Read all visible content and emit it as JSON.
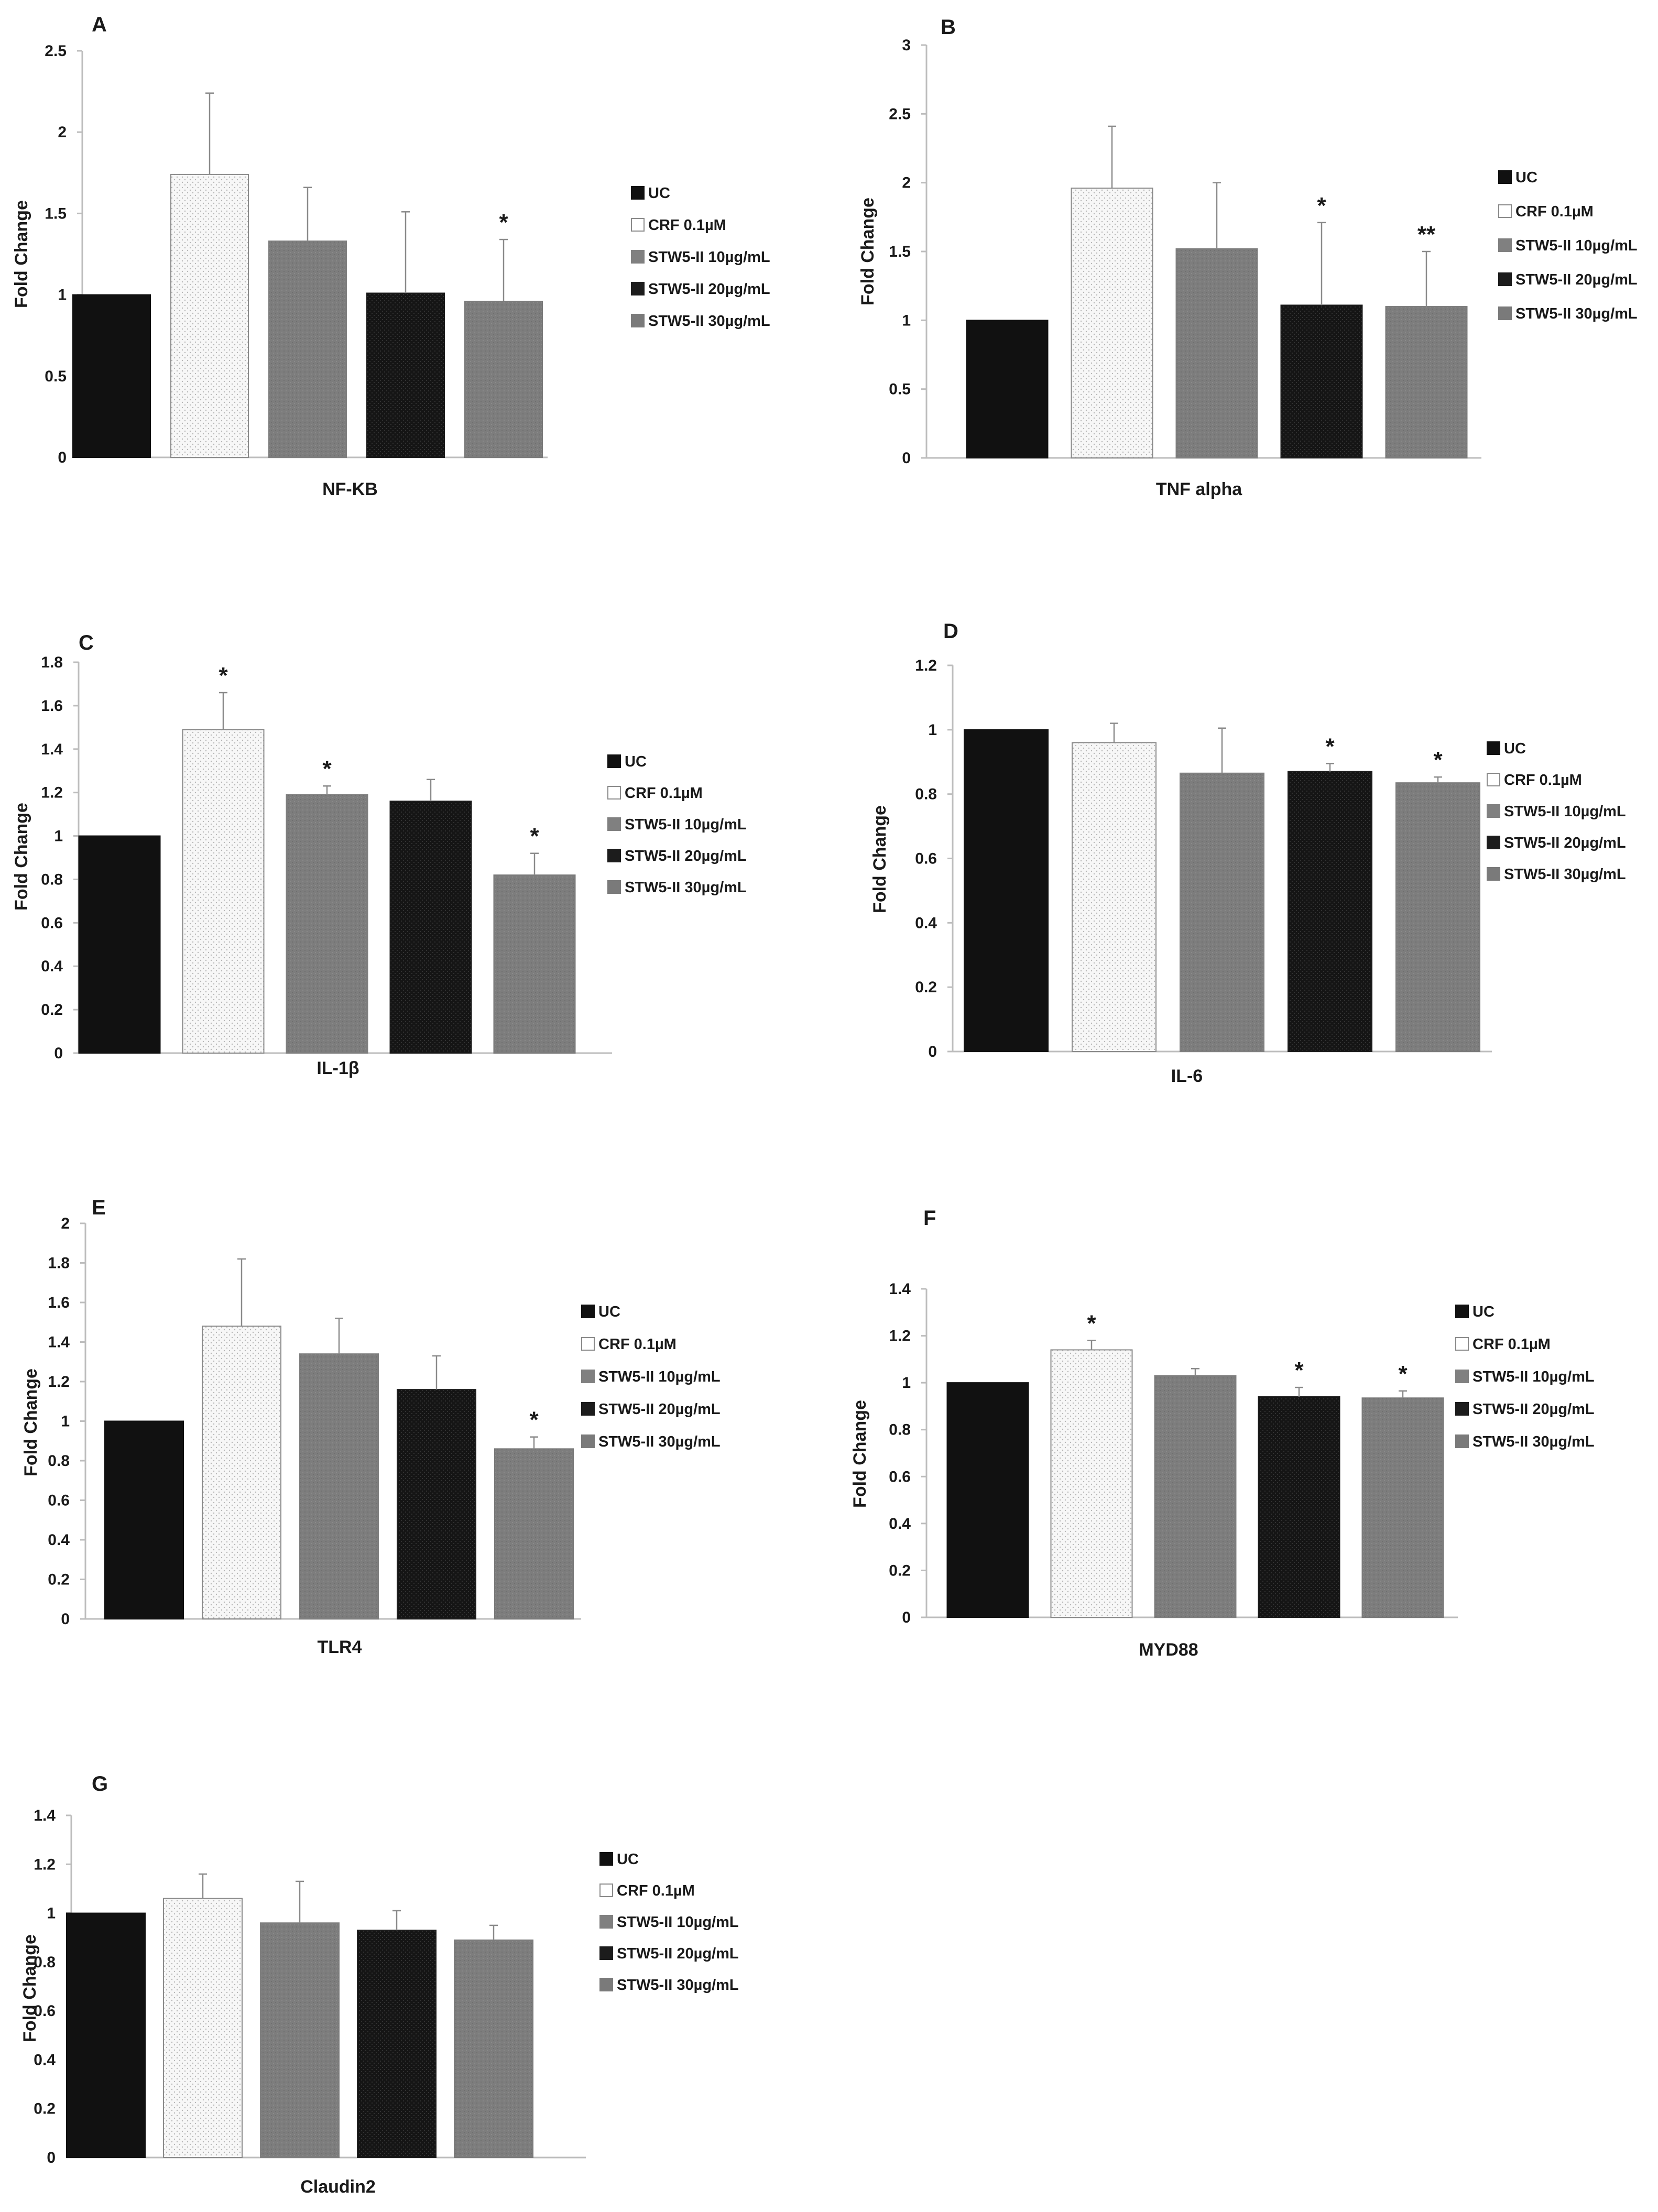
{
  "colors": {
    "uc": "#111111",
    "crf_fill": "#f7f7f7",
    "crf_stroke": "#8a8a8a",
    "stw10": "#808080",
    "stw20": "#1c1c1c",
    "stw30": "#7a7a7a",
    "axis": "#bdbdbd",
    "error": "#8a8a8a"
  },
  "legend_labels": [
    "UC",
    "CRF 0.1µM",
    "STW5-II 10µg/mL",
    "STW5-II 20µg/mL",
    "STW5-II 30µg/mL"
  ],
  "chart_data": [
    {
      "type": "bar",
      "panel": "A",
      "xlabel": "NF-KB",
      "ylabel": "Fold Change",
      "ylim": [
        0,
        2.5
      ],
      "yticks": [
        "0",
        "0.5",
        "1",
        "1.5",
        "2",
        "2.5"
      ],
      "series": [
        {
          "name": "UC",
          "value": 1.0,
          "error": 0,
          "sig": ""
        },
        {
          "name": "CRF 0.1µM",
          "value": 1.74,
          "error": 0.5,
          "sig": ""
        },
        {
          "name": "STW5-II 10µg/mL",
          "value": 1.33,
          "error": 0.33,
          "sig": ""
        },
        {
          "name": "STW5-II 20µg/mL",
          "value": 1.01,
          "error": 0.5,
          "sig": ""
        },
        {
          "name": "STW5-II 30µg/mL",
          "value": 0.96,
          "error": 0.38,
          "sig": "*"
        }
      ]
    },
    {
      "type": "bar",
      "panel": "B",
      "xlabel": "TNF alpha",
      "ylabel": "Fold Change",
      "ylim": [
        0,
        3
      ],
      "yticks": [
        "0",
        "0.5",
        "1",
        "1.5",
        "2",
        "2.5",
        "3"
      ],
      "series": [
        {
          "name": "UC",
          "value": 1.0,
          "error": 0,
          "sig": ""
        },
        {
          "name": "CRF 0.1µM",
          "value": 1.96,
          "error": 0.45,
          "sig": ""
        },
        {
          "name": "STW5-II 10µg/mL",
          "value": 1.52,
          "error": 0.48,
          "sig": ""
        },
        {
          "name": "STW5-II 20µg/mL",
          "value": 1.11,
          "error": 0.6,
          "sig": "*"
        },
        {
          "name": "STW5-II 30µg/mL",
          "value": 1.1,
          "error": 0.4,
          "sig": "**"
        }
      ]
    },
    {
      "type": "bar",
      "panel": "C",
      "xlabel": "IL-1β",
      "ylabel": "Fold Change",
      "ylim": [
        0,
        1.8
      ],
      "yticks": [
        "0",
        "0.2",
        "0.4",
        "0.6",
        "0.8",
        "1",
        "1.2",
        "1.4",
        "1.6",
        "1.8"
      ],
      "series": [
        {
          "name": "UC",
          "value": 1.0,
          "error": 0,
          "sig": ""
        },
        {
          "name": "CRF 0.1µM",
          "value": 1.49,
          "error": 0.17,
          "sig": "*"
        },
        {
          "name": "STW5-II 10µg/mL",
          "value": 1.19,
          "error": 0.04,
          "sig": "*"
        },
        {
          "name": "STW5-II 20µg/mL",
          "value": 1.16,
          "error": 0.1,
          "sig": ""
        },
        {
          "name": "STW5-II 30µg/mL",
          "value": 0.82,
          "error": 0.1,
          "sig": "*"
        }
      ]
    },
    {
      "type": "bar",
      "panel": "D",
      "xlabel": "IL-6",
      "ylabel": "Fold Change",
      "ylim": [
        0,
        1.2
      ],
      "yticks": [
        "0",
        "0.2",
        "0.4",
        "0.6",
        "0.8",
        "1",
        "1.2"
      ],
      "series": [
        {
          "name": "UC",
          "value": 1.0,
          "error": 0,
          "sig": ""
        },
        {
          "name": "CRF 0.1µM",
          "value": 0.96,
          "error": 0.06,
          "sig": ""
        },
        {
          "name": "STW5-II 10µg/mL",
          "value": 0.865,
          "error": 0.14,
          "sig": ""
        },
        {
          "name": "STW5-II 20µg/mL",
          "value": 0.87,
          "error": 0.025,
          "sig": "*"
        },
        {
          "name": "STW5-II 30µg/mL",
          "value": 0.835,
          "error": 0.018,
          "sig": "*"
        }
      ]
    },
    {
      "type": "bar",
      "panel": "E",
      "xlabel": "TLR4",
      "ylabel": "Fold Change",
      "ylim": [
        0,
        2
      ],
      "yticks": [
        "0",
        "0.2",
        "0.4",
        "0.6",
        "0.8",
        "1",
        "1.2",
        "1.4",
        "1.6",
        "1.8",
        "2"
      ],
      "series": [
        {
          "name": "UC",
          "value": 1.0,
          "error": 0,
          "sig": ""
        },
        {
          "name": "CRF 0.1µM",
          "value": 1.48,
          "error": 0.34,
          "sig": ""
        },
        {
          "name": "STW5-II 10µg/mL",
          "value": 1.34,
          "error": 0.18,
          "sig": ""
        },
        {
          "name": "STW5-II 20µg/mL",
          "value": 1.16,
          "error": 0.17,
          "sig": ""
        },
        {
          "name": "STW5-II 30µg/mL",
          "value": 0.86,
          "error": 0.06,
          "sig": "*"
        }
      ]
    },
    {
      "type": "bar",
      "panel": "F",
      "xlabel": "MYD88",
      "ylabel": "Fold Change",
      "ylim": [
        0,
        1.4
      ],
      "yticks": [
        "0",
        "0.2",
        "0.4",
        "0.6",
        "0.8",
        "1",
        "1.2",
        "1.4"
      ],
      "series": [
        {
          "name": "UC",
          "value": 1.0,
          "error": 0,
          "sig": ""
        },
        {
          "name": "CRF 0.1µM",
          "value": 1.14,
          "error": 0.04,
          "sig": "*"
        },
        {
          "name": "STW5-II 10µg/mL",
          "value": 1.03,
          "error": 0.03,
          "sig": ""
        },
        {
          "name": "STW5-II 20µg/mL",
          "value": 0.94,
          "error": 0.04,
          "sig": "*"
        },
        {
          "name": "STW5-II 30µg/mL",
          "value": 0.935,
          "error": 0.03,
          "sig": "*"
        }
      ]
    },
    {
      "type": "bar",
      "panel": "G",
      "xlabel": "Claudin2",
      "ylabel": "Fold Change",
      "ylim": [
        0,
        1.4
      ],
      "yticks": [
        "0",
        "0.2",
        "0.4",
        "0.6",
        "0.8",
        "1",
        "1.2",
        "1.4"
      ],
      "series": [
        {
          "name": "UC",
          "value": 1.0,
          "error": 0,
          "sig": ""
        },
        {
          "name": "CRF 0.1µM",
          "value": 1.06,
          "error": 0.1,
          "sig": ""
        },
        {
          "name": "STW5-II 10µg/mL",
          "value": 0.96,
          "error": 0.17,
          "sig": ""
        },
        {
          "name": "STW5-II 20µg/mL",
          "value": 0.93,
          "error": 0.08,
          "sig": ""
        },
        {
          "name": "STW5-II 30µg/mL",
          "value": 0.89,
          "error": 0.06,
          "sig": ""
        }
      ]
    }
  ]
}
